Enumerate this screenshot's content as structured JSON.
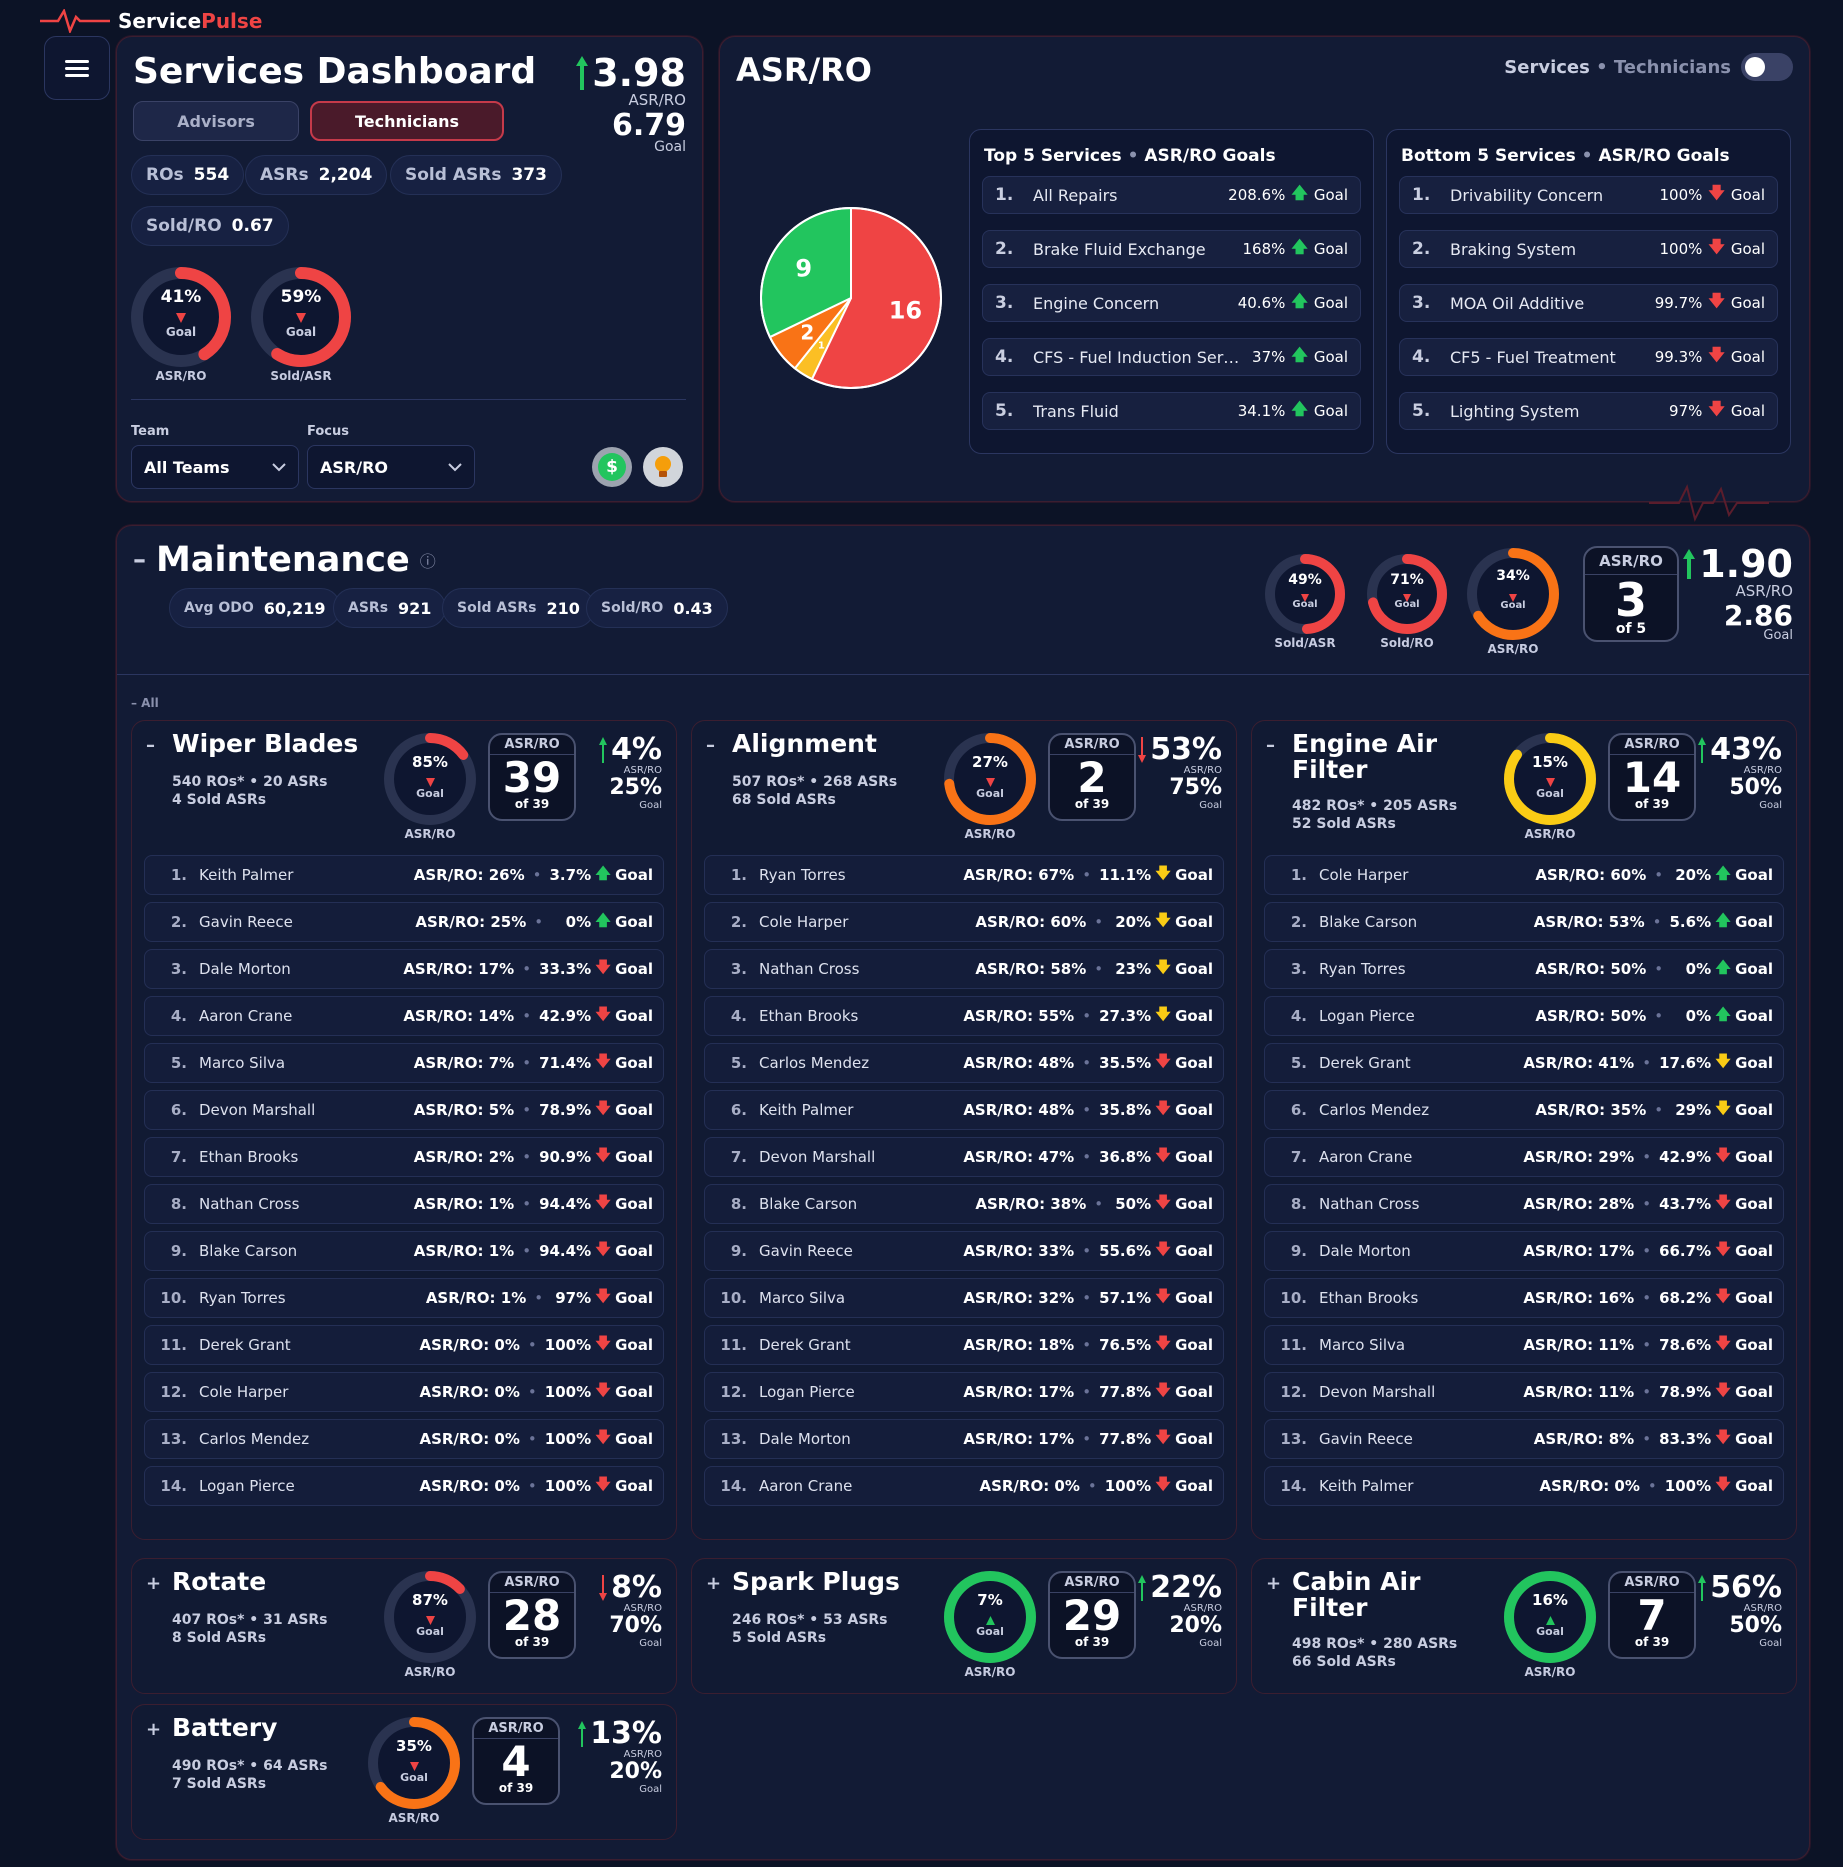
{
  "brand": {
    "name_a": "Service",
    "name_b": "Pulse"
  },
  "header": {
    "title": "Services Dashboard",
    "tab_advisors": "Advisors",
    "tab_technicians": "Technicians",
    "big_value": "3.98",
    "big_label": "ASR/RO",
    "goal_value": "6.79",
    "goal_label": "Goal"
  },
  "stats": [
    {
      "k": "ROs",
      "v": "554"
    },
    {
      "k": "ASRs",
      "v": "2,204"
    },
    {
      "k": "Sold ASRs",
      "v": "373"
    },
    {
      "k": "Sold/RO",
      "v": "0.67"
    }
  ],
  "rings_top": [
    {
      "pct": "41%",
      "goal": "Goal",
      "label": "ASR/RO",
      "value": 0.41
    },
    {
      "pct": "59%",
      "goal": "Goal",
      "label": "Sold/ASR",
      "value": 0.59
    }
  ],
  "filters": {
    "team_label": "Team",
    "team_value": "All Teams",
    "focus_label": "Focus",
    "focus_value": "ASR/RO"
  },
  "asr": {
    "title": "ASR/RO",
    "toggle_a": "Services",
    "toggle_sep": "•",
    "toggle_b": "Technicians"
  },
  "pie": {
    "slices": [
      {
        "value": 16,
        "color": "#ef4444"
      },
      {
        "value": 1,
        "color": "#fbbf24"
      },
      {
        "value": 2,
        "color": "#f97316"
      },
      {
        "value": 9,
        "color": "#22c55e"
      }
    ]
  },
  "top5": {
    "title": "Top 5 Services",
    "sep": "•",
    "sub": "ASR/RO Goals",
    "items": [
      {
        "n": "1.",
        "name": "All Repairs",
        "pct": "208.6%",
        "dir": "up",
        "goal": "Goal"
      },
      {
        "n": "2.",
        "name": "Brake Fluid Exchange",
        "pct": "168%",
        "dir": "up",
        "goal": "Goal"
      },
      {
        "n": "3.",
        "name": "Engine Concern",
        "pct": "40.6%",
        "dir": "up",
        "goal": "Goal"
      },
      {
        "n": "4.",
        "name": "CFS - Fuel Induction Ser…",
        "pct": "37%",
        "dir": "up",
        "goal": "Goal"
      },
      {
        "n": "5.",
        "name": "Trans Fluid",
        "pct": "34.1%",
        "dir": "up",
        "goal": "Goal"
      }
    ]
  },
  "bottom5": {
    "title": "Bottom 5 Services",
    "sep": "•",
    "sub": "ASR/RO Goals",
    "items": [
      {
        "n": "1.",
        "name": "Drivability Concern",
        "pct": "100%",
        "dir": "dn",
        "goal": "Goal"
      },
      {
        "n": "2.",
        "name": "Braking System",
        "pct": "100%",
        "dir": "dn",
        "goal": "Goal"
      },
      {
        "n": "3.",
        "name": "MOA Oil Additive",
        "pct": "99.7%",
        "dir": "dn",
        "goal": "Goal"
      },
      {
        "n": "4.",
        "name": "CF5 - Fuel Treatment",
        "pct": "99.3%",
        "dir": "dn",
        "goal": "Goal"
      },
      {
        "n": "5.",
        "name": "Lighting System",
        "pct": "97%",
        "dir": "dn",
        "goal": "Goal"
      }
    ]
  },
  "maint": {
    "title": "Maintenance",
    "collapse": "–",
    "info": "ⓘ",
    "all_label": "– All",
    "stats": [
      {
        "k": "Avg ODO",
        "v": "60,219"
      },
      {
        "k": "ASRs",
        "v": "921"
      },
      {
        "k": "Sold ASRs",
        "v": "210"
      },
      {
        "k": "Sold/RO",
        "v": "0.43"
      }
    ],
    "rings": [
      {
        "pct": "49%",
        "goal": "Goal",
        "label": "Sold/ASR",
        "value": 0.49,
        "color": "#ef4444"
      },
      {
        "pct": "71%",
        "goal": "Goal",
        "label": "Sold/RO",
        "value": 0.71,
        "color": "#ef4444"
      },
      {
        "pct": "34%",
        "goal": "Goal",
        "label": "ASR/RO",
        "value": 0.66,
        "color": "#f97316"
      }
    ],
    "rank_h": "ASR/RO",
    "rank": "3",
    "rank_of": "of 5",
    "big": "1.90",
    "big_label": "ASR/RO",
    "goal": "2.86",
    "goal_label": "Goal"
  },
  "sections": [
    {
      "title": "Wiper Blades",
      "title2": "",
      "line1": "540 ROs* • 20 ASRs",
      "line2": "4 Sold ASRs",
      "ring_pct": "85%",
      "ring_goal": "Goal",
      "ring_label": "ASR/RO",
      "ring_val": 0.15,
      "ring_color": "#ef4444",
      "rank_h": "ASR/RO",
      "rank": "39",
      "rank_of": "of 39",
      "big": "4%",
      "dir": "up",
      "big_label": "ASR/RO",
      "goal": "25%",
      "goal_label": "Goal",
      "toggle": "–",
      "rows": [
        [
          "1.",
          "Keith Palmer",
          "ASR/RO: 26%",
          "3.7%",
          "up"
        ],
        [
          "2.",
          "Gavin Reece",
          "ASR/RO: 25%",
          "0%",
          "up"
        ],
        [
          "3.",
          "Dale Morton",
          "ASR/RO: 17%",
          "33.3%",
          "dn"
        ],
        [
          "4.",
          "Aaron Crane",
          "ASR/RO: 14%",
          "42.9%",
          "dn"
        ],
        [
          "5.",
          "Marco Silva",
          "ASR/RO: 7%",
          "71.4%",
          "dn"
        ],
        [
          "6.",
          "Devon Marshall",
          "ASR/RO: 5%",
          "78.9%",
          "dn"
        ],
        [
          "7.",
          "Ethan Brooks",
          "ASR/RO: 2%",
          "90.9%",
          "dn"
        ],
        [
          "8.",
          "Nathan Cross",
          "ASR/RO: 1%",
          "94.4%",
          "dn"
        ],
        [
          "9.",
          "Blake Carson",
          "ASR/RO: 1%",
          "94.4%",
          "dn"
        ],
        [
          "10.",
          "Ryan Torres",
          "ASR/RO: 1%",
          "97%",
          "dn"
        ],
        [
          "11.",
          "Derek Grant",
          "ASR/RO: 0%",
          "100%",
          "dn"
        ],
        [
          "12.",
          "Cole Harper",
          "ASR/RO: 0%",
          "100%",
          "dn"
        ],
        [
          "13.",
          "Carlos Mendez",
          "ASR/RO: 0%",
          "100%",
          "dn"
        ],
        [
          "14.",
          "Logan Pierce",
          "ASR/RO: 0%",
          "100%",
          "dn"
        ]
      ]
    },
    {
      "title": "Alignment",
      "title2": "",
      "line1": "507 ROs* • 268 ASRs",
      "line2": "68 Sold ASRs",
      "ring_pct": "27%",
      "ring_goal": "Goal",
      "ring_label": "ASR/RO",
      "ring_val": 0.73,
      "ring_color": "#f97316",
      "rank_h": "ASR/RO",
      "rank": "2",
      "rank_of": "of 39",
      "big": "53%",
      "dir": "dn",
      "big_label": "ASR/RO",
      "goal": "75%",
      "goal_label": "Goal",
      "toggle": "–",
      "rows": [
        [
          "1.",
          "Ryan Torres",
          "ASR/RO: 67%",
          "11.1%",
          "wn"
        ],
        [
          "2.",
          "Cole Harper",
          "ASR/RO: 60%",
          "20%",
          "wn"
        ],
        [
          "3.",
          "Nathan Cross",
          "ASR/RO: 58%",
          "23%",
          "wn"
        ],
        [
          "4.",
          "Ethan Brooks",
          "ASR/RO: 55%",
          "27.3%",
          "wn"
        ],
        [
          "5.",
          "Carlos Mendez",
          "ASR/RO: 48%",
          "35.5%",
          "dn"
        ],
        [
          "6.",
          "Keith Palmer",
          "ASR/RO: 48%",
          "35.8%",
          "dn"
        ],
        [
          "7.",
          "Devon Marshall",
          "ASR/RO: 47%",
          "36.8%",
          "dn"
        ],
        [
          "8.",
          "Blake Carson",
          "ASR/RO: 38%",
          "50%",
          "dn"
        ],
        [
          "9.",
          "Gavin Reece",
          "ASR/RO: 33%",
          "55.6%",
          "dn"
        ],
        [
          "10.",
          "Marco Silva",
          "ASR/RO: 32%",
          "57.1%",
          "dn"
        ],
        [
          "11.",
          "Derek Grant",
          "ASR/RO: 18%",
          "76.5%",
          "dn"
        ],
        [
          "12.",
          "Logan Pierce",
          "ASR/RO: 17%",
          "77.8%",
          "dn"
        ],
        [
          "13.",
          "Dale Morton",
          "ASR/RO: 17%",
          "77.8%",
          "dn"
        ],
        [
          "14.",
          "Aaron Crane",
          "ASR/RO: 0%",
          "100%",
          "dn"
        ]
      ]
    },
    {
      "title": "Engine Air",
      "title2": "Filter",
      "line1": "482 ROs* • 205 ASRs",
      "line2": "52 Sold ASRs",
      "ring_pct": "15%",
      "ring_goal": "Goal",
      "ring_label": "ASR/RO",
      "ring_val": 0.85,
      "ring_color": "#facc15",
      "rank_h": "ASR/RO",
      "rank": "14",
      "rank_of": "of 39",
      "big": "43%",
      "dir": "up",
      "big_label": "ASR/RO",
      "goal": "50%",
      "goal_label": "Goal",
      "toggle": "–",
      "rows": [
        [
          "1.",
          "Cole Harper",
          "ASR/RO: 60%",
          "20%",
          "up"
        ],
        [
          "2.",
          "Blake Carson",
          "ASR/RO: 53%",
          "5.6%",
          "up"
        ],
        [
          "3.",
          "Ryan Torres",
          "ASR/RO: 50%",
          "0%",
          "up"
        ],
        [
          "4.",
          "Logan Pierce",
          "ASR/RO: 50%",
          "0%",
          "up"
        ],
        [
          "5.",
          "Derek Grant",
          "ASR/RO: 41%",
          "17.6%",
          "wn"
        ],
        [
          "6.",
          "Carlos Mendez",
          "ASR/RO: 35%",
          "29%",
          "wn"
        ],
        [
          "7.",
          "Aaron Crane",
          "ASR/RO: 29%",
          "42.9%",
          "dn"
        ],
        [
          "8.",
          "Nathan Cross",
          "ASR/RO: 28%",
          "43.7%",
          "dn"
        ],
        [
          "9.",
          "Dale Morton",
          "ASR/RO: 17%",
          "66.7%",
          "dn"
        ],
        [
          "10.",
          "Ethan Brooks",
          "ASR/RO: 16%",
          "68.2%",
          "dn"
        ],
        [
          "11.",
          "Marco Silva",
          "ASR/RO: 11%",
          "78.6%",
          "dn"
        ],
        [
          "12.",
          "Devon Marshall",
          "ASR/RO: 11%",
          "78.9%",
          "dn"
        ],
        [
          "13.",
          "Gavin Reece",
          "ASR/RO: 8%",
          "83.3%",
          "dn"
        ],
        [
          "14.",
          "Keith Palmer",
          "ASR/RO: 0%",
          "100%",
          "dn"
        ]
      ]
    },
    {
      "title": "Rotate",
      "title2": "",
      "line1": "407 ROs* • 31 ASRs",
      "line2": "8 Sold ASRs",
      "ring_pct": "87%",
      "ring_goal": "Goal",
      "ring_label": "ASR/RO",
      "ring_val": 0.13,
      "ring_color": "#ef4444",
      "rank_h": "ASR/RO",
      "rank": "28",
      "rank_of": "of 39",
      "big": "8%",
      "dir": "dn",
      "big_label": "ASR/RO",
      "goal": "70%",
      "goal_label": "Goal",
      "toggle": "+",
      "rows": []
    },
    {
      "title": "Spark Plugs",
      "title2": "",
      "line1": "246 ROs* • 53 ASRs",
      "line2": "5 Sold ASRs",
      "ring_pct": "7%",
      "ring_goal": "Goal",
      "ring_label": "ASR/RO",
      "ring_val": 1,
      "ring_color": "#22c55e",
      "rank_h": "ASR/RO",
      "rank": "29",
      "rank_of": "of 39",
      "big": "22%",
      "dir": "up",
      "big_label": "ASR/RO",
      "goal": "20%",
      "goal_label": "Goal",
      "toggle": "+",
      "rows": []
    },
    {
      "title": "Cabin Air",
      "title2": "Filter",
      "line1": "498 ROs* • 280 ASRs",
      "line2": "66 Sold ASRs",
      "ring_pct": "16%",
      "ring_goal": "Goal",
      "ring_label": "ASR/RO",
      "ring_val": 1,
      "ring_color": "#22c55e",
      "rank_h": "ASR/RO",
      "rank": "7",
      "rank_of": "of 39",
      "big": "56%",
      "dir": "up",
      "big_label": "ASR/RO",
      "goal": "50%",
      "goal_label": "Goal",
      "toggle": "+",
      "rows": []
    },
    {
      "title": "Battery",
      "title2": "",
      "line1": "490 ROs* • 64 ASRs",
      "line2": "7 Sold ASRs",
      "ring_pct": "35%",
      "ring_goal": "Goal",
      "ring_label": "ASR/RO",
      "ring_val": 0.65,
      "ring_color": "#f97316",
      "rank_h": "ASR/RO",
      "rank": "4",
      "rank_of": "of 39",
      "big": "13%",
      "dir": "up",
      "big_label": "ASR/RO",
      "goal": "20%",
      "goal_label": "Goal",
      "toggle": "+",
      "rows": []
    }
  ]
}
